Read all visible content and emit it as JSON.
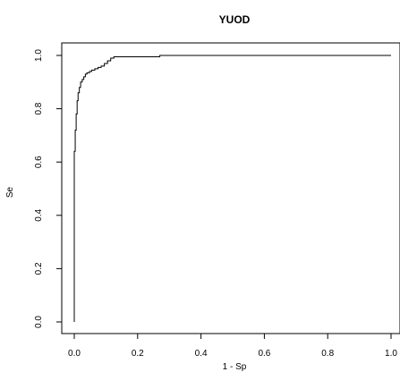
{
  "chart_data": {
    "type": "line",
    "title": "YUOD",
    "xlabel": "1 - Sp",
    "ylabel": "Se",
    "xlim": [
      0,
      1
    ],
    "ylim": [
      0,
      1
    ],
    "x_ticks": [
      "0.0",
      "0.2",
      "0.4",
      "0.6",
      "0.8",
      "1.0"
    ],
    "y_ticks": [
      "0.0",
      "0.2",
      "0.4",
      "0.6",
      "0.8",
      "1.0"
    ],
    "grid": false,
    "legend": "none",
    "line_color": "#000000",
    "series": [
      {
        "x": [
          0,
          0,
          0.003,
          0.003,
          0.006,
          0.006,
          0.009,
          0.009,
          0.012,
          0.012,
          0.016,
          0.016,
          0.02,
          0.02,
          0.025,
          0.025,
          0.03,
          0.03,
          0.035,
          0.035,
          0.04,
          0.04,
          0.048,
          0.048,
          0.055,
          0.055,
          0.065,
          0.065,
          0.075,
          0.075,
          0.085,
          0.085,
          0.095,
          0.095,
          0.105,
          0.105,
          0.115,
          0.115,
          0.125,
          0.125,
          0.27,
          0.27,
          1.0
        ],
        "y": [
          0,
          0.64,
          0.64,
          0.72,
          0.72,
          0.78,
          0.78,
          0.83,
          0.83,
          0.86,
          0.86,
          0.88,
          0.88,
          0.9,
          0.9,
          0.91,
          0.91,
          0.92,
          0.92,
          0.93,
          0.93,
          0.935,
          0.935,
          0.94,
          0.94,
          0.945,
          0.945,
          0.95,
          0.95,
          0.955,
          0.955,
          0.96,
          0.96,
          0.97,
          0.97,
          0.98,
          0.98,
          0.99,
          0.99,
          0.995,
          0.995,
          1.0,
          1.0
        ]
      }
    ]
  }
}
